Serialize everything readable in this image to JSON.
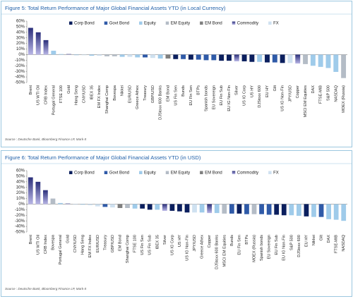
{
  "chart_data": [
    {
      "type": "bar",
      "title": "Figure 5: Total Return Performance of Major Global Financial Assets YTD (in Local Currency)",
      "source": "Source : Deutsche Bank, Bloomberg Finance LP, Mark-It",
      "categories": [
        "Brent",
        "US WTI Oil",
        "CRB Index",
        "Portugal General",
        "FTSE 100",
        "Gold",
        "Hang Seng",
        "CNY/USD",
        "IBEX 35",
        "EM FX Index",
        "Shanghai Comp",
        "Bovespa",
        "Nikkei",
        "EUR/USD",
        "Greece Athex",
        "Treasury",
        "GBP/USD",
        "DJStoxx 600 Banks",
        "EM Bond",
        "US Fin Sen",
        "Bunds",
        "EU Fin Sen",
        "BTPs",
        "Spanish bonds",
        "EU Sovereign",
        "EU Fin Sub",
        "EU IG Non-Fin",
        "Silver",
        "US IG Corp",
        "US HY",
        "DJStoxx 600",
        "EU HY",
        "Gilt",
        "US IG Non-Fin",
        "JPY/USD",
        "Copper",
        "MSCI EM Equities",
        "DAX",
        "FTSE-MIB",
        "S&P 500",
        "NASDAQ",
        "MOEX (Russia)"
      ],
      "series": [
        {
          "name": "Corp Bond",
          "color": "#0b1f5e",
          "values": [
            null,
            null,
            null,
            null,
            null,
            null,
            null,
            null,
            null,
            null,
            null,
            null,
            null,
            null,
            null,
            null,
            null,
            null,
            null,
            -8,
            null,
            -9,
            null,
            null,
            null,
            -11,
            -11,
            null,
            -12,
            -13,
            null,
            -14,
            null,
            -15,
            null,
            null,
            null,
            null,
            null,
            null,
            null,
            null
          ]
        },
        {
          "name": "Govt Bond",
          "color": "#2f5aa8",
          "values": [
            null,
            null,
            null,
            null,
            null,
            null,
            null,
            null,
            null,
            null,
            null,
            null,
            null,
            null,
            null,
            -5,
            null,
            null,
            null,
            null,
            -8,
            null,
            -9,
            -10,
            -10,
            null,
            null,
            null,
            null,
            null,
            null,
            null,
            -14,
            null,
            null,
            null,
            null,
            null,
            null,
            null,
            null,
            null
          ]
        },
        {
          "name": "Equity",
          "color": "#9fcbea",
          "values": [
            null,
            null,
            null,
            7,
            1,
            null,
            -1,
            null,
            -2,
            null,
            null,
            null,
            -4,
            null,
            -5,
            null,
            null,
            -7,
            null,
            null,
            null,
            null,
            null,
            null,
            null,
            null,
            null,
            null,
            null,
            null,
            -13,
            null,
            null,
            null,
            null,
            null,
            null,
            -20,
            -22,
            -24,
            -31,
            null
          ]
        },
        {
          "name": "EM Equity",
          "color": "#b4bcc6",
          "values": [
            null,
            null,
            null,
            null,
            null,
            null,
            null,
            null,
            null,
            null,
            -3,
            -3,
            null,
            null,
            null,
            null,
            null,
            null,
            null,
            null,
            null,
            null,
            null,
            null,
            null,
            null,
            null,
            null,
            null,
            null,
            null,
            null,
            null,
            null,
            null,
            null,
            -17,
            null,
            null,
            null,
            null,
            -42
          ]
        },
        {
          "name": "EM Bond",
          "color": "#7f7f7f",
          "values": [
            null,
            null,
            null,
            null,
            null,
            null,
            null,
            null,
            null,
            null,
            null,
            null,
            null,
            null,
            null,
            null,
            null,
            null,
            -7,
            null,
            null,
            null,
            null,
            null,
            null,
            null,
            null,
            null,
            null,
            null,
            null,
            null,
            null,
            null,
            null,
            null,
            null,
            null,
            null,
            null,
            null,
            null
          ]
        },
        {
          "name": "Commodity",
          "color": "#2b2f7a",
          "values": [
            48,
            40,
            26,
            null,
            null,
            1,
            null,
            null,
            null,
            null,
            null,
            null,
            null,
            null,
            null,
            null,
            null,
            null,
            null,
            null,
            null,
            null,
            null,
            null,
            null,
            null,
            null,
            -12,
            null,
            null,
            null,
            null,
            null,
            null,
            null,
            -16,
            null,
            null,
            null,
            null,
            null,
            null
          ]
        },
        {
          "name": "FX",
          "color": "#cfe1f0",
          "values": [
            null,
            null,
            null,
            null,
            null,
            null,
            null,
            -1,
            null,
            -2,
            null,
            null,
            null,
            -4,
            null,
            null,
            -6,
            null,
            null,
            null,
            null,
            null,
            null,
            null,
            null,
            null,
            null,
            null,
            null,
            null,
            null,
            null,
            null,
            null,
            -15,
            null,
            null,
            null,
            null,
            null,
            null,
            null
          ]
        }
      ],
      "ylim": [
        -50,
        60
      ],
      "yticks": [
        {
          "value": 60,
          "label": "60%"
        },
        {
          "value": 50,
          "label": "50%"
        },
        {
          "value": 40,
          "label": "40%"
        },
        {
          "value": 30,
          "label": "30%"
        },
        {
          "value": 20,
          "label": "20%"
        },
        {
          "value": 10,
          "label": "10%"
        },
        {
          "value": 0,
          "label": "0%"
        },
        {
          "value": -10,
          "label": "-10%"
        },
        {
          "value": -20,
          "label": "-20%"
        },
        {
          "value": -30,
          "label": "-30%"
        },
        {
          "value": -40,
          "label": "-40%"
        },
        {
          "value": -50,
          "label": "-50%"
        }
      ]
    },
    {
      "type": "bar",
      "title": "Figure 6: Total Return Performance of Major Global Financial Assets YTD (in USD)",
      "source": "Source : Deutsche Bank, Bloomberg Finance LP, Mark-It",
      "categories": [
        "Brent",
        "US WTI Oil",
        "CRB Index",
        "Bovespa",
        "Portugal General",
        "Gold",
        "CNY/USD",
        "Hang Seng",
        "EM FX Index",
        "EUR/USD",
        "Treasury",
        "GBP/USD",
        "EM Bond",
        "Shanghai Comp",
        "FTSE 100",
        "US Fin Sen",
        "US Fin Sub",
        "IBEX 35",
        "Silver",
        "US IG Corp",
        "US HY",
        "US IG Non-Fin",
        "JPY/USD",
        "Greece Athex",
        "Copper",
        "DJStoxx 600 Banks",
        "MSCI EM Equities",
        "Bunds",
        "EU Fin Sen",
        "BTPs",
        "MOEX (Russia)",
        "Spanish bonds",
        "EU Sovereign",
        "EU Fin Sub",
        "EU IG Non-Fin",
        "S&P 500",
        "DJStoxx 600",
        "EU HY",
        "Nikkei",
        "Gilt",
        "DAX",
        "FTSE-MIB",
        "NASDAQ"
      ],
      "series": [
        {
          "name": "Corp Bond",
          "color": "#0b1f5e",
          "values": [
            null,
            null,
            null,
            null,
            null,
            null,
            null,
            null,
            null,
            null,
            null,
            null,
            null,
            null,
            null,
            -8,
            -10,
            null,
            null,
            -12,
            -13,
            -15,
            null,
            null,
            null,
            null,
            null,
            null,
            -17,
            null,
            null,
            null,
            null,
            -19,
            -20,
            null,
            null,
            -22,
            null,
            null,
            null,
            null,
            null
          ]
        },
        {
          "name": "Govt Bond",
          "color": "#2f5aa8",
          "values": [
            null,
            null,
            null,
            null,
            null,
            null,
            null,
            null,
            null,
            null,
            -5,
            null,
            null,
            null,
            null,
            null,
            null,
            null,
            null,
            null,
            null,
            null,
            null,
            null,
            null,
            null,
            null,
            -17,
            null,
            -18,
            null,
            -18,
            -19,
            null,
            null,
            null,
            null,
            null,
            null,
            -23,
            null,
            null,
            null
          ]
        },
        {
          "name": "Equity",
          "color": "#9fcbea",
          "values": [
            null,
            null,
            null,
            null,
            2,
            null,
            null,
            -1,
            null,
            null,
            null,
            null,
            null,
            null,
            -8,
            null,
            null,
            -10,
            null,
            null,
            null,
            null,
            null,
            -15,
            null,
            -16,
            null,
            null,
            null,
            null,
            null,
            null,
            null,
            null,
            null,
            -20,
            -21,
            null,
            -23,
            null,
            -27,
            -28,
            -30
          ]
        },
        {
          "name": "EM Equity",
          "color": "#b4bcc6",
          "values": [
            null,
            null,
            null,
            10,
            null,
            null,
            null,
            null,
            null,
            null,
            null,
            null,
            null,
            -7,
            null,
            null,
            null,
            null,
            null,
            null,
            null,
            null,
            null,
            null,
            null,
            null,
            -17,
            null,
            null,
            null,
            -18,
            null,
            null,
            null,
            null,
            null,
            null,
            null,
            null,
            null,
            null,
            null,
            null
          ]
        },
        {
          "name": "EM Bond",
          "color": "#7f7f7f",
          "values": [
            null,
            null,
            null,
            null,
            null,
            null,
            null,
            null,
            null,
            null,
            null,
            null,
            -7,
            null,
            null,
            null,
            null,
            null,
            null,
            null,
            null,
            null,
            null,
            null,
            null,
            null,
            null,
            null,
            null,
            null,
            null,
            null,
            null,
            null,
            null,
            null,
            null,
            null,
            null,
            null,
            null,
            null,
            null
          ]
        },
        {
          "name": "Commodity",
          "color": "#2b2f7a",
          "values": [
            48,
            40,
            25,
            null,
            null,
            1,
            null,
            null,
            null,
            null,
            null,
            null,
            null,
            null,
            null,
            null,
            null,
            null,
            -12,
            null,
            null,
            null,
            null,
            null,
            -16,
            null,
            null,
            null,
            null,
            null,
            null,
            null,
            null,
            null,
            null,
            null,
            null,
            null,
            null,
            null,
            null,
            null,
            null
          ]
        },
        {
          "name": "FX",
          "color": "#cfe1f0",
          "values": [
            null,
            null,
            null,
            null,
            null,
            null,
            -1,
            null,
            -2,
            -4,
            null,
            -6,
            null,
            null,
            null,
            null,
            null,
            null,
            null,
            null,
            null,
            null,
            -15,
            null,
            null,
            null,
            null,
            null,
            null,
            null,
            null,
            null,
            null,
            null,
            null,
            null,
            null,
            null,
            null,
            null,
            null,
            null,
            null
          ]
        }
      ],
      "ylim": [
        -50,
        60
      ],
      "yticks": [
        {
          "value": 60,
          "label": "60%"
        },
        {
          "value": 50,
          "label": "50%"
        },
        {
          "value": 40,
          "label": "40%"
        },
        {
          "value": 30,
          "label": "30%"
        },
        {
          "value": 20,
          "label": "20%"
        },
        {
          "value": 10,
          "label": "10%"
        },
        {
          "value": 0,
          "label": "0%"
        },
        {
          "value": -10,
          "label": "-10%"
        },
        {
          "value": -20,
          "label": "-20%"
        },
        {
          "value": -30,
          "label": "-30%"
        },
        {
          "value": -40,
          "label": "-40%"
        },
        {
          "value": -50,
          "label": "-50%"
        }
      ]
    }
  ]
}
